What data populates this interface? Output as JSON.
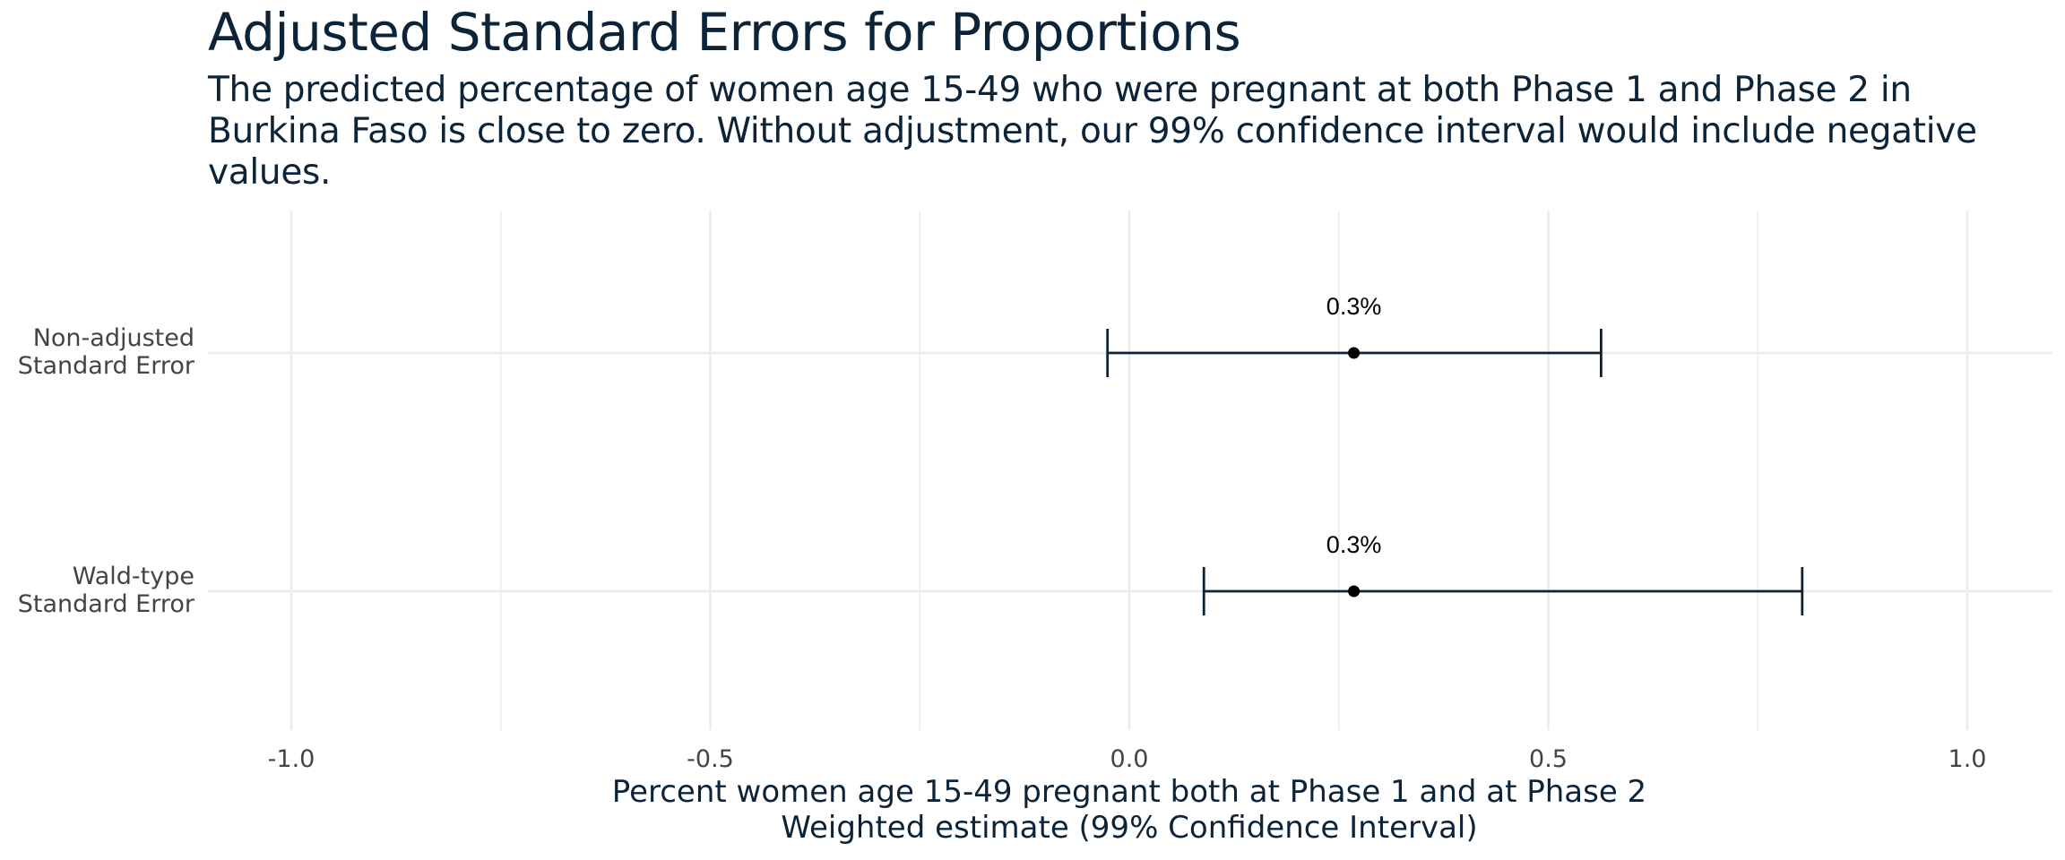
{
  "chart_data": {
    "type": "errorbar",
    "title": "Adjusted Standard Errors for Proportions",
    "subtitle": "The predicted percentage of women age 15-49 who were pregnant at both Phase 1 and Phase 2 in Burkina Faso is close to zero. Without adjustment, our 99% confidence interval would include negative values.",
    "xlabel": [
      "Percent women age 15-49 pregnant both at Phase 1 and at Phase 2",
      "Weighted estimate (99% Confidence Interval)"
    ],
    "ylabel": "",
    "xlim": [
      -1.1,
      1.1
    ],
    "x_ticks": [
      "-1.0",
      "-0.5",
      "0.0",
      "0.5",
      "1.0"
    ],
    "x_tick_values": [
      -1.0,
      -0.5,
      0.0,
      0.5,
      1.0
    ],
    "grid": true,
    "categories": [
      [
        "Non-adjusted",
        "Standard Error"
      ],
      [
        "Wald-type",
        "Standard Error"
      ]
    ],
    "estimates": [
      0.268,
      0.268
    ],
    "lower": [
      -0.026,
      0.089
    ],
    "upper": [
      0.563,
      0.803
    ],
    "data_labels": [
      "0.3%",
      "0.3%"
    ],
    "colors": {
      "errorbar": "#0c2338",
      "point": "#000000",
      "grid": "#ebebeb",
      "text": "#0c2338"
    }
  }
}
